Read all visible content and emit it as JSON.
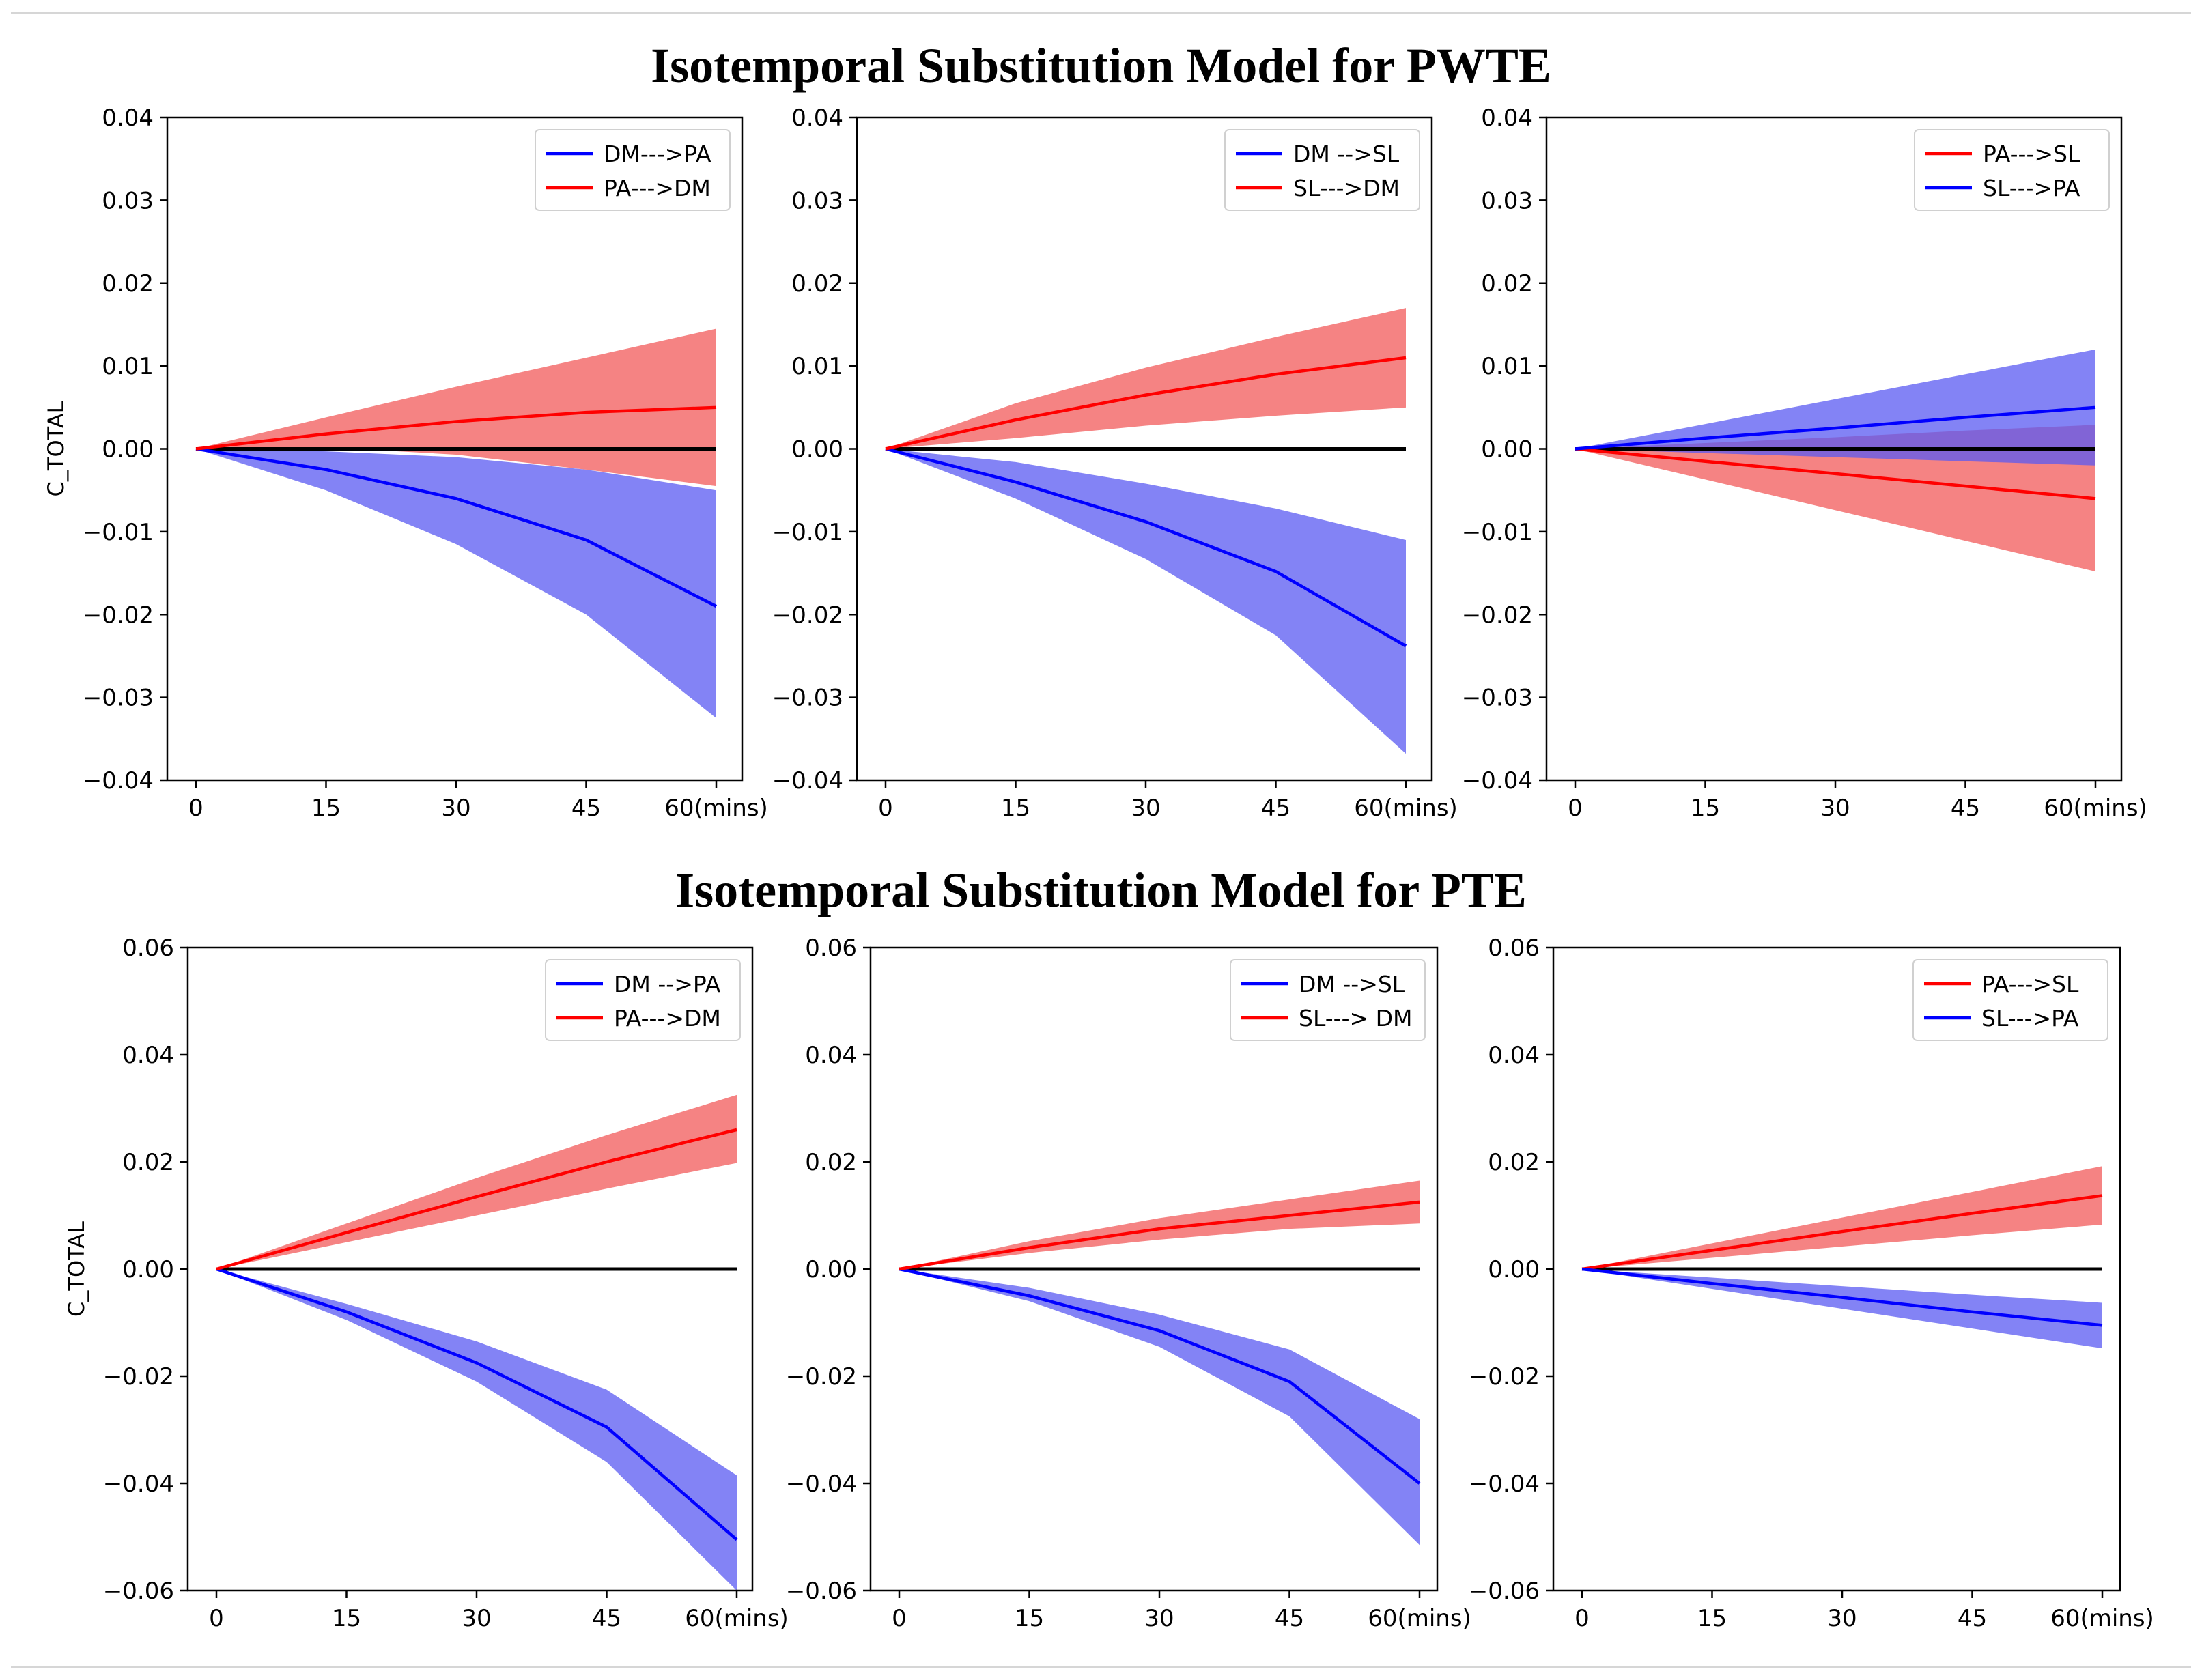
{
  "figure": {
    "title_top": "Isotemporal Substitution Model for PWTE",
    "title_bottom": "Isotemporal Substitution Model for PTE"
  },
  "colors": {
    "red_line": "#ff0000",
    "blue_line": "#0000ff",
    "red_band": "#f25a5a",
    "blue_band": "#5a5af2",
    "zero_line": "#000000"
  },
  "chart_data": [
    {
      "type": "line",
      "title": "",
      "ylabel": "C_TOTAL",
      "xlabel": "",
      "x": [
        0,
        15,
        30,
        45,
        60
      ],
      "xticklabels": [
        "0",
        "15",
        "30",
        "45",
        "60(mins)"
      ],
      "ylim": [
        -0.04,
        0.04
      ],
      "yticks": [
        0.04,
        0.03,
        0.02,
        0.01,
        0.0,
        -0.01,
        -0.02,
        -0.03,
        -0.04
      ],
      "yticklabels": [
        "0.04",
        "0.03",
        "0.02",
        "0.01",
        "0.00",
        "−0.01",
        "−0.02",
        "−0.03",
        "−0.04"
      ],
      "legend": "top-right",
      "series": [
        {
          "name": "DM--->PA",
          "color": "blue",
          "values": [
            0,
            -0.0025,
            -0.006,
            -0.011,
            -0.019
          ],
          "lower": [
            0,
            -0.005,
            -0.0115,
            -0.02,
            -0.0325
          ],
          "upper": [
            0,
            -0.0003,
            -0.001,
            -0.0025,
            -0.005
          ]
        },
        {
          "name": "PA--->DM",
          "color": "red",
          "values": [
            0,
            0.0018,
            0.0033,
            0.0044,
            0.005
          ],
          "lower": [
            0,
            0.0002,
            -0.0007,
            -0.0025,
            -0.0045
          ],
          "upper": [
            0,
            0.0038,
            0.0075,
            0.011,
            0.0145
          ]
        }
      ]
    },
    {
      "type": "line",
      "title": "",
      "ylabel": "",
      "xlabel": "",
      "x": [
        0,
        15,
        30,
        45,
        60
      ],
      "xticklabels": [
        "0",
        "15",
        "30",
        "45",
        "60(mins)"
      ],
      "ylim": [
        -0.04,
        0.04
      ],
      "yticks": [
        0.04,
        0.03,
        0.02,
        0.01,
        0.0,
        -0.01,
        -0.02,
        -0.03,
        -0.04
      ],
      "yticklabels": [
        "0.04",
        "0.03",
        "0.02",
        "0.01",
        "0.00",
        "−0.01",
        "−0.02",
        "−0.03",
        "−0.04"
      ],
      "legend": "top-right",
      "series": [
        {
          "name": "DM -->SL",
          "color": "blue",
          "values": [
            0,
            -0.004,
            -0.0088,
            -0.0148,
            -0.0238
          ],
          "lower": [
            0,
            -0.006,
            -0.0133,
            -0.0225,
            -0.0368
          ],
          "upper": [
            0,
            -0.0016,
            -0.0042,
            -0.0072,
            -0.011
          ]
        },
        {
          "name": "SL--->DM",
          "color": "red",
          "values": [
            0,
            0.0035,
            0.0065,
            0.009,
            0.011
          ],
          "lower": [
            0,
            0.0013,
            0.0028,
            0.004,
            0.005
          ],
          "upper": [
            0,
            0.0055,
            0.0098,
            0.0135,
            0.017
          ]
        }
      ]
    },
    {
      "type": "line",
      "title": "",
      "ylabel": "",
      "xlabel": "",
      "x": [
        0,
        15,
        30,
        45,
        60
      ],
      "xticklabels": [
        "0",
        "15",
        "30",
        "45",
        "60(mins)"
      ],
      "ylim": [
        -0.04,
        0.04
      ],
      "yticks": [
        0.04,
        0.03,
        0.02,
        0.01,
        0.0,
        -0.01,
        -0.02,
        -0.03,
        -0.04
      ],
      "yticklabels": [
        "0.04",
        "0.03",
        "0.02",
        "0.01",
        "0.00",
        "−0.01",
        "−0.02",
        "−0.03",
        "−0.04"
      ],
      "legend": "top-right",
      "series": [
        {
          "name": "PA--->SL",
          "color": "red",
          "values": [
            0,
            -0.0015,
            -0.003,
            -0.0045,
            -0.006
          ],
          "lower": [
            0,
            -0.0037,
            -0.0074,
            -0.0111,
            -0.0148
          ],
          "upper": [
            0,
            0.0007,
            0.0014,
            0.0022,
            0.0029
          ]
        },
        {
          "name": "SL--->PA",
          "color": "blue",
          "values": [
            0,
            0.0013,
            0.0025,
            0.0038,
            0.005
          ],
          "lower": [
            0,
            -0.0005,
            -0.001,
            -0.0015,
            -0.002
          ],
          "upper": [
            0,
            0.003,
            0.006,
            0.009,
            0.012
          ]
        }
      ]
    },
    {
      "type": "line",
      "title": "",
      "ylabel": "C_TOTAL",
      "xlabel": "",
      "x": [
        0,
        15,
        30,
        45,
        60
      ],
      "xticklabels": [
        "0",
        "15",
        "30",
        "45",
        "60(mins)"
      ],
      "ylim": [
        -0.06,
        0.06
      ],
      "yticks": [
        0.06,
        0.04,
        0.02,
        0.0,
        -0.02,
        -0.04,
        -0.06
      ],
      "yticklabels": [
        "0.06",
        "0.04",
        "0.02",
        "0.00",
        "−0.02",
        "−0.04",
        "−0.06"
      ],
      "legend": "top-right",
      "series": [
        {
          "name": "DM -->PA",
          "color": "blue",
          "values": [
            0,
            -0.008,
            -0.0175,
            -0.0295,
            -0.0505
          ],
          "lower": [
            0,
            -0.0095,
            -0.021,
            -0.036,
            -0.06
          ],
          "upper": [
            0,
            -0.0065,
            -0.0135,
            -0.0225,
            -0.0385
          ]
        },
        {
          "name": "PA--->DM",
          "color": "red",
          "values": [
            0,
            0.0068,
            0.0135,
            0.02,
            0.026
          ],
          "lower": [
            0,
            0.005,
            0.01,
            0.015,
            0.0198
          ],
          "upper": [
            0,
            0.0085,
            0.017,
            0.025,
            0.0325
          ]
        }
      ]
    },
    {
      "type": "line",
      "title": "",
      "ylabel": "",
      "xlabel": "",
      "x": [
        0,
        15,
        30,
        45,
        60
      ],
      "xticklabels": [
        "0",
        "15",
        "30",
        "45",
        "60(mins)"
      ],
      "ylim": [
        -0.06,
        0.06
      ],
      "yticks": [
        0.06,
        0.04,
        0.02,
        0.0,
        -0.02,
        -0.04,
        -0.06
      ],
      "yticklabels": [
        "0.06",
        "0.04",
        "0.02",
        "0.00",
        "−0.02",
        "−0.04",
        "−0.06"
      ],
      "legend": "top-right",
      "series": [
        {
          "name": "DM -->SL",
          "color": "blue",
          "values": [
            0,
            -0.005,
            -0.0115,
            -0.021,
            -0.04
          ],
          "lower": [
            0,
            -0.006,
            -0.0145,
            -0.0275,
            -0.0515
          ],
          "upper": [
            0,
            -0.0035,
            -0.0085,
            -0.015,
            -0.028
          ]
        },
        {
          "name": "SL---> DM",
          "color": "red",
          "values": [
            0,
            0.004,
            0.0075,
            0.01,
            0.0125
          ],
          "lower": [
            0,
            0.003,
            0.0055,
            0.0075,
            0.0085
          ],
          "upper": [
            0,
            0.0052,
            0.0095,
            0.013,
            0.0165
          ]
        }
      ]
    },
    {
      "type": "line",
      "title": "",
      "ylabel": "",
      "xlabel": "",
      "x": [
        0,
        15,
        30,
        45,
        60
      ],
      "xticklabels": [
        "0",
        "15",
        "30",
        "45",
        "60(mins)"
      ],
      "ylim": [
        -0.06,
        0.06
      ],
      "yticks": [
        0.06,
        0.04,
        0.02,
        0.0,
        -0.02,
        -0.04,
        -0.06
      ],
      "yticklabels": [
        "0.06",
        "0.04",
        "0.02",
        "0.00",
        "−0.02",
        "−0.04",
        "−0.06"
      ],
      "legend": "top-right",
      "series": [
        {
          "name": "PA--->SL",
          "color": "red",
          "values": [
            0,
            0.0035,
            0.007,
            0.0104,
            0.0137
          ],
          "lower": [
            0,
            0.0021,
            0.0042,
            0.0063,
            0.0083
          ],
          "upper": [
            0,
            0.0048,
            0.0096,
            0.0144,
            0.0192
          ]
        },
        {
          "name": "SL--->PA",
          "color": "blue",
          "values": [
            0,
            -0.0027,
            -0.0053,
            -0.008,
            -0.0105
          ],
          "lower": [
            0,
            -0.0037,
            -0.0074,
            -0.0111,
            -0.0148
          ],
          "upper": [
            0,
            -0.0016,
            -0.0032,
            -0.0048,
            -0.0063
          ]
        }
      ]
    }
  ]
}
